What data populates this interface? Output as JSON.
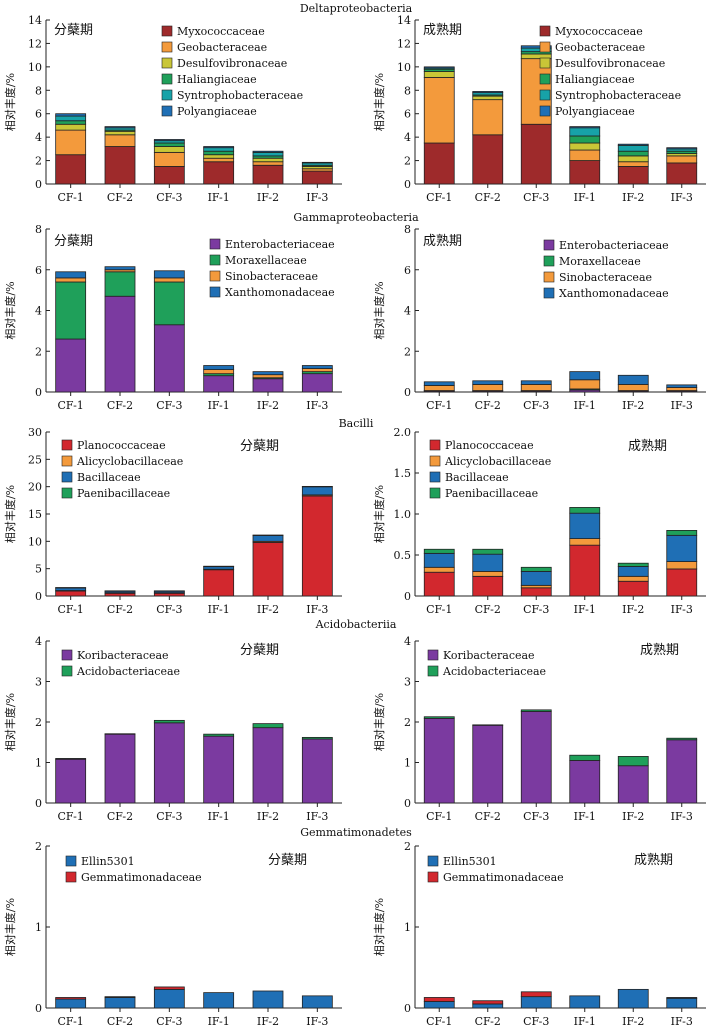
{
  "figure": {
    "y_axis_label": "相对丰度/%",
    "categories": [
      "CF-1",
      "CF-2",
      "CF-3",
      "IF-1",
      "IF-2",
      "IF-3"
    ],
    "groups": [
      {
        "title": "Deltaproteobacteria",
        "colors": [
          "#9e2a2b",
          "#f39a3c",
          "#c9c637",
          "#1fa05a",
          "#17a2a8",
          "#1f6fb5"
        ],
        "panels": [
          {
            "period": "分蘖期",
            "chart_data": {
              "type": "bar",
              "stacked": true,
              "ylim": [
                0,
                14
              ],
              "yticks": [
                0,
                2,
                4,
                6,
                8,
                10,
                12,
                14
              ],
              "legend_position": "top-right",
              "series": [
                {
                  "name": "Myxococcaceae",
                  "values": [
                    2.5,
                    3.2,
                    1.5,
                    1.9,
                    1.6,
                    1.1
                  ]
                },
                {
                  "name": "Geobacteraceae",
                  "values": [
                    2.1,
                    1.0,
                    1.2,
                    0.3,
                    0.3,
                    0.2
                  ]
                },
                {
                  "name": "Desulfovibronaceae",
                  "values": [
                    0.5,
                    0.3,
                    0.5,
                    0.3,
                    0.3,
                    0.2
                  ]
                },
                {
                  "name": "Haliangiaceae",
                  "values": [
                    0.3,
                    0.1,
                    0.3,
                    0.3,
                    0.2,
                    0.1
                  ]
                },
                {
                  "name": "Syntrophobacteraceae",
                  "values": [
                    0.4,
                    0.2,
                    0.2,
                    0.3,
                    0.3,
                    0.2
                  ]
                },
                {
                  "name": "Polyangiaceae",
                  "values": [
                    0.2,
                    0.1,
                    0.1,
                    0.1,
                    0.1,
                    0.05
                  ]
                }
              ]
            }
          },
          {
            "period": "成熟期",
            "chart_data": {
              "type": "bar",
              "stacked": true,
              "ylim": [
                0,
                14
              ],
              "yticks": [
                0,
                2,
                4,
                6,
                8,
                10,
                12,
                14
              ],
              "legend_position": "top-right",
              "series": [
                {
                  "name": "Myxococcaceae",
                  "values": [
                    3.5,
                    4.2,
                    5.1,
                    2.0,
                    1.5,
                    1.8
                  ]
                },
                {
                  "name": "Geobacteraceae",
                  "values": [
                    5.6,
                    3.0,
                    5.6,
                    0.9,
                    0.4,
                    0.6
                  ]
                },
                {
                  "name": "Desulfovibronaceae",
                  "values": [
                    0.5,
                    0.3,
                    0.4,
                    0.6,
                    0.5,
                    0.2
                  ]
                },
                {
                  "name": "Haliangiaceae",
                  "values": [
                    0.2,
                    0.1,
                    0.2,
                    0.6,
                    0.4,
                    0.2
                  ]
                },
                {
                  "name": "Syntrophobacteraceae",
                  "values": [
                    0.1,
                    0.2,
                    0.3,
                    0.7,
                    0.5,
                    0.2
                  ]
                },
                {
                  "name": "Polyangiaceae",
                  "values": [
                    0.1,
                    0.1,
                    0.2,
                    0.1,
                    0.1,
                    0.1
                  ]
                }
              ]
            }
          }
        ]
      },
      {
        "title": "Gammaproteobacteria",
        "colors": [
          "#7b3aa0",
          "#1fa05a",
          "#f39a3c",
          "#1f6fb5"
        ],
        "panels": [
          {
            "period": "分蘖期",
            "chart_data": {
              "type": "bar",
              "stacked": true,
              "ylim": [
                0,
                8
              ],
              "yticks": [
                0,
                2,
                4,
                6,
                8
              ],
              "legend_position": "top-right",
              "series": [
                {
                  "name": "Enterobacteriaceae",
                  "values": [
                    2.6,
                    4.7,
                    3.3,
                    0.8,
                    0.65,
                    0.9
                  ]
                },
                {
                  "name": "Moraxellaceae",
                  "values": [
                    2.8,
                    1.2,
                    2.1,
                    0.1,
                    0.05,
                    0.1
                  ]
                },
                {
                  "name": "Sinobacteraceae",
                  "values": [
                    0.2,
                    0.1,
                    0.2,
                    0.2,
                    0.15,
                    0.15
                  ]
                },
                {
                  "name": "Xanthomonadaceae",
                  "values": [
                    0.3,
                    0.15,
                    0.35,
                    0.2,
                    0.15,
                    0.15
                  ]
                }
              ]
            }
          },
          {
            "period": "成熟期",
            "chart_data": {
              "type": "bar",
              "stacked": true,
              "ylim": [
                0,
                8
              ],
              "yticks": [
                0,
                2,
                4,
                6,
                8
              ],
              "legend_position": "top-right",
              "series": [
                {
                  "name": "Enterobacteriaceae",
                  "values": [
                    0.05,
                    0.05,
                    0.05,
                    0.1,
                    0.05,
                    0.05
                  ]
                },
                {
                  "name": "Moraxellaceae",
                  "values": [
                    0.02,
                    0.02,
                    0.02,
                    0.05,
                    0.02,
                    0.02
                  ]
                },
                {
                  "name": "Sinobacteraceae",
                  "values": [
                    0.25,
                    0.3,
                    0.3,
                    0.45,
                    0.3,
                    0.15
                  ]
                },
                {
                  "name": "Xanthomonadaceae",
                  "values": [
                    0.18,
                    0.18,
                    0.18,
                    0.4,
                    0.45,
                    0.13
                  ]
                }
              ]
            }
          }
        ]
      },
      {
        "title": "Bacilli",
        "colors": [
          "#d2282e",
          "#f39a3c",
          "#1f6fb5",
          "#1fa05a"
        ],
        "panels": [
          {
            "period": "分蘖期",
            "chart_data": {
              "type": "bar",
              "stacked": true,
              "ylim": [
                0,
                30
              ],
              "yticks": [
                0,
                5,
                10,
                15,
                20,
                25,
                30
              ],
              "legend_position": "top-left",
              "series": [
                {
                  "name": "Planococcaceae",
                  "values": [
                    0.9,
                    0.5,
                    0.5,
                    4.8,
                    9.8,
                    18.3
                  ]
                },
                {
                  "name": "Alicyclobacillaceae",
                  "values": [
                    0.1,
                    0.1,
                    0.1,
                    0.1,
                    0.2,
                    0.2
                  ]
                },
                {
                  "name": "Bacillaceae",
                  "values": [
                    0.5,
                    0.3,
                    0.3,
                    0.5,
                    1.1,
                    1.5
                  ]
                },
                {
                  "name": "Paenibacillaceae",
                  "values": [
                    0.05,
                    0.05,
                    0.05,
                    0.05,
                    0.05,
                    0.05
                  ]
                }
              ]
            }
          },
          {
            "period": "成熟期",
            "chart_data": {
              "type": "bar",
              "stacked": true,
              "ylim": [
                0,
                2.0
              ],
              "yticks": [
                0,
                0.5,
                1.0,
                1.5,
                2.0
              ],
              "ytick_labels": [
                "0",
                "0.5",
                "1.0",
                "1.5",
                "2.0"
              ],
              "legend_position": "top-left",
              "series": [
                {
                  "name": "Planococcaceae",
                  "values": [
                    0.29,
                    0.24,
                    0.1,
                    0.62,
                    0.18,
                    0.33
                  ]
                },
                {
                  "name": "Alicyclobacillaceae",
                  "values": [
                    0.06,
                    0.06,
                    0.03,
                    0.08,
                    0.06,
                    0.09
                  ]
                },
                {
                  "name": "Bacillaceae",
                  "values": [
                    0.17,
                    0.21,
                    0.17,
                    0.31,
                    0.12,
                    0.32
                  ]
                },
                {
                  "name": "Paenibacillaceae",
                  "values": [
                    0.05,
                    0.06,
                    0.05,
                    0.07,
                    0.04,
                    0.06
                  ]
                }
              ]
            }
          }
        ]
      },
      {
        "title": "Acidobacteriia",
        "colors": [
          "#7b3aa0",
          "#1fa05a"
        ],
        "panels": [
          {
            "period": "分蘖期",
            "chart_data": {
              "type": "bar",
              "stacked": true,
              "ylim": [
                0,
                4
              ],
              "yticks": [
                0,
                1,
                2,
                3,
                4
              ],
              "legend_position": "top-left",
              "series": [
                {
                  "name": "Koribacteraceae",
                  "values": [
                    1.08,
                    1.7,
                    1.98,
                    1.65,
                    1.86,
                    1.58
                  ]
                },
                {
                  "name": "Acidobacteriaceae",
                  "values": [
                    0.02,
                    0.01,
                    0.06,
                    0.05,
                    0.1,
                    0.04
                  ]
                }
              ]
            }
          },
          {
            "period": "成熟期",
            "chart_data": {
              "type": "bar",
              "stacked": true,
              "ylim": [
                0,
                4
              ],
              "yticks": [
                0,
                1,
                2,
                3,
                4
              ],
              "legend_position": "top-left",
              "series": [
                {
                  "name": "Koribacteraceae",
                  "values": [
                    2.09,
                    1.92,
                    2.26,
                    1.05,
                    0.92,
                    1.56
                  ]
                },
                {
                  "name": "Acidobacteriaceae",
                  "values": [
                    0.04,
                    0.01,
                    0.04,
                    0.13,
                    0.23,
                    0.04
                  ]
                }
              ]
            }
          }
        ]
      },
      {
        "title": "Gemmatimonadetes",
        "colors": [
          "#1f6fb5",
          "#d2282e"
        ],
        "panels": [
          {
            "period": "分蘖期",
            "chart_data": {
              "type": "bar",
              "stacked": true,
              "ylim": [
                0,
                2
              ],
              "yticks": [
                0,
                1,
                2
              ],
              "legend_position": "top-left",
              "series": [
                {
                  "name": "Ellin5301",
                  "values": [
                    0.11,
                    0.13,
                    0.23,
                    0.19,
                    0.21,
                    0.15
                  ]
                },
                {
                  "name": "Gemmatimonadaceae",
                  "values": [
                    0.02,
                    0.01,
                    0.03,
                    0.0,
                    0.0,
                    0.0
                  ]
                }
              ]
            }
          },
          {
            "period": "成熟期",
            "chart_data": {
              "type": "bar",
              "stacked": true,
              "ylim": [
                0,
                2
              ],
              "yticks": [
                0,
                1,
                2
              ],
              "legend_position": "top-left",
              "series": [
                {
                  "name": "Ellin5301",
                  "values": [
                    0.08,
                    0.05,
                    0.14,
                    0.15,
                    0.23,
                    0.12
                  ]
                },
                {
                  "name": "Gemmatimonadaceae",
                  "values": [
                    0.05,
                    0.04,
                    0.06,
                    0.0,
                    0.0,
                    0.01
                  ]
                }
              ]
            }
          }
        ]
      }
    ]
  }
}
